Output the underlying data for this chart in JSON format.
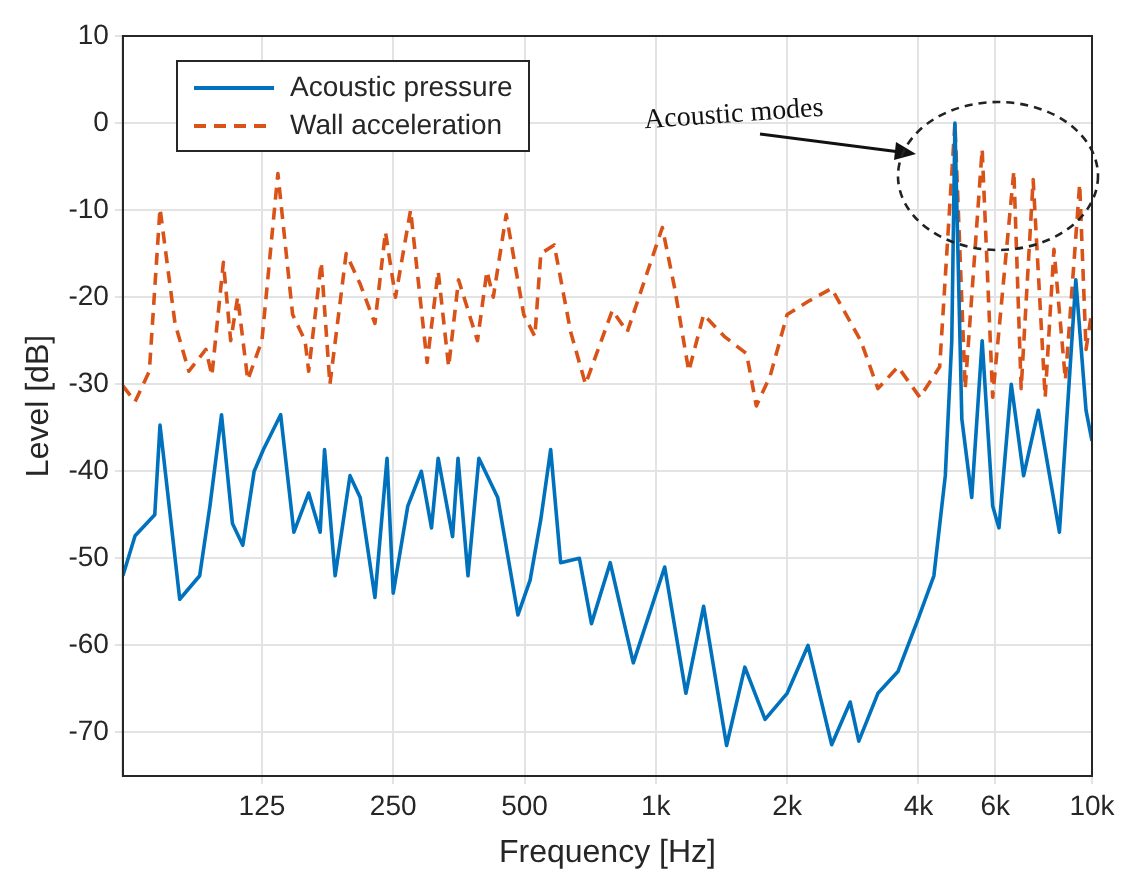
{
  "chart_data": {
    "type": "line",
    "xlabel": "Frequency [Hz]",
    "ylabel": "Level [dB]",
    "annotations": [
      "Acoustic modes"
    ],
    "log": "x",
    "grid": true,
    "legend": "top left",
    "xlim": [
      60,
      10000
    ],
    "xticks": [
      125,
      250,
      500,
      {
        "value": 1000,
        "label": "1k"
      },
      {
        "value": 2000,
        "label": "2k"
      },
      {
        "value": 4000,
        "label": "4k"
      },
      {
        "value": 6000,
        "label": "6k"
      },
      {
        "value": 10000,
        "label": "10k"
      }
    ],
    "ylim": [
      -75,
      10
    ],
    "yticks": [
      -70,
      -60,
      -50,
      -40,
      -30,
      -20,
      -10,
      0,
      10
    ],
    "series": [
      {
        "name": "Acoustic pressure",
        "color": "#0072bd",
        "line_style": "solid",
        "x": [
          60,
          64,
          71,
          73,
          81,
          90,
          95,
          101,
          107,
          113,
          120,
          126,
          138,
          148,
          160,
          170,
          174,
          184,
          199,
          210,
          227,
          242,
          250,
          270,
          290,
          306,
          317,
          342,
          352,
          371,
          393,
          434,
          483,
          515,
          545,
          574,
          605,
          668,
          712,
          786,
          888,
          1048,
          1172,
          1287,
          1453,
          1600,
          1780,
          2000,
          2233,
          2530,
          2790,
          2920,
          3230,
          3590,
          3990,
          4340,
          4610,
          4770,
          4850,
          5030,
          5300,
          5600,
          5920,
          6120,
          6530,
          6970,
          7530,
          8420,
          9180,
          9690,
          10000
        ],
        "values": [
          -52,
          -47.4,
          -45,
          -34.7,
          -54.7,
          -52,
          -44,
          -33.5,
          -46,
          -48.5,
          -40,
          -37.5,
          -33.5,
          -47,
          -42.5,
          -47,
          -37.5,
          -52,
          -40.5,
          -43,
          -54.5,
          -38.5,
          -54,
          -44,
          -40,
          -46.5,
          -38.5,
          -47.5,
          -38.5,
          -52,
          -38.5,
          -43,
          -56.5,
          -52.5,
          -45.5,
          -37.5,
          -50.5,
          -50,
          -57.5,
          -50.5,
          -62,
          -51,
          -65.5,
          -55.5,
          -71.5,
          -62.5,
          -68.5,
          -65.5,
          -60,
          -71.4,
          -66.5,
          -71,
          -65.5,
          -63,
          -57,
          -52,
          -40.5,
          -25,
          0,
          -34,
          -43,
          -25,
          -44,
          -46.5,
          -30,
          -40.5,
          -33,
          -47,
          -18,
          -33,
          -36.5
        ]
      },
      {
        "name": "Wall acceleration",
        "color": "#d95319",
        "line_style": "dashed",
        "x": [
          60,
          64,
          69,
          73,
          79,
          85,
          93,
          96,
          102,
          106,
          110,
          116,
          125,
          136,
          147,
          157,
          160,
          171,
          179,
          195,
          210,
          227,
          240,
          253,
          274,
          299,
          317,
          335,
          353,
          390,
          410,
          424,
          454,
          498,
          528,
          545,
          585,
          638,
          690,
          795,
          860,
          1035,
          1105,
          1190,
          1287,
          1435,
          1615,
          1700,
          1830,
          2000,
          2233,
          2530,
          2950,
          3230,
          3590,
          4030,
          4475,
          4850,
          5120,
          5600,
          5920,
          6620,
          6880,
          7330,
          7810,
          8180,
          8690,
          9370,
          9690,
          10000
        ],
        "values": [
          -30.2,
          -32,
          -28.5,
          -9.8,
          -23,
          -28.5,
          -26,
          -29,
          -16,
          -25,
          -20,
          -29.5,
          -25,
          -5.8,
          -22,
          -25,
          -28.5,
          -16,
          -30,
          -15,
          -18.5,
          -23,
          -12.5,
          -20,
          -10,
          -27.5,
          -17,
          -28,
          -18,
          -25,
          -17,
          -20,
          -10.5,
          -22,
          -24.5,
          -15,
          -14,
          -24,
          -30,
          -21.5,
          -24,
          -12,
          -19,
          -28.5,
          -22,
          -24.5,
          -26.5,
          -32.5,
          -29,
          -22,
          -20.5,
          -19,
          -25,
          -30.5,
          -28,
          -31.5,
          -28,
          0,
          -30.5,
          -3,
          -31.5,
          -5.5,
          -30.5,
          -6.5,
          -31.5,
          -14.5,
          -29.5,
          -7,
          -26,
          -21.5
        ]
      }
    ]
  }
}
